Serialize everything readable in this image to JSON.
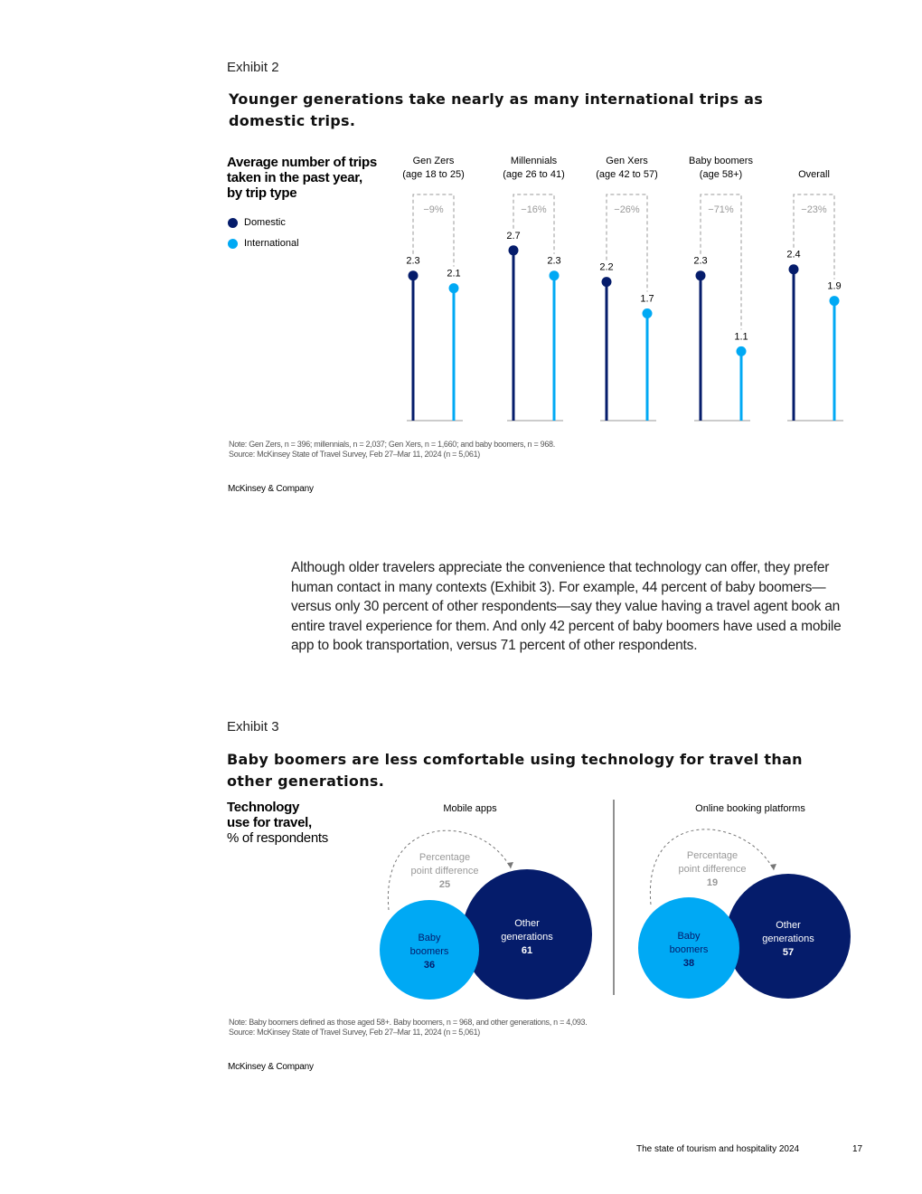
{
  "exhibit2": {
    "label": "Exhibit 2",
    "title": "Younger generations take nearly as many international trips as domestic trips.",
    "subtitle_lines": [
      "Average number of trips",
      "taken in the past year,",
      "by trip type"
    ],
    "legend": {
      "domestic": "Domestic",
      "international": "International"
    },
    "note": "Note: Gen Zers, n = 396; millennials, n = 2,037; Gen Xers, n = 1,660; and baby boomers, n = 968.",
    "source": "Source: McKinsey State of Travel Survey, Feb 27–Mar 11, 2024 (n = 5,061)",
    "brand": "McKinsey & Company"
  },
  "chart_data": [
    {
      "type": "lollipop",
      "title": "Average number of trips taken in the past year, by trip type",
      "categories": [
        {
          "name": "Gen Zers",
          "sub": "(age 18 to 25)"
        },
        {
          "name": "Millennials",
          "sub": "(age 26 to 41)"
        },
        {
          "name": "Gen Xers",
          "sub": "(age 42 to 57)"
        },
        {
          "name": "Baby boomers",
          "sub": "(age 58+)"
        },
        {
          "name": "Overall",
          "sub": ""
        }
      ],
      "series": [
        {
          "name": "Domestic",
          "color": "#051c6b",
          "values": [
            2.3,
            2.7,
            2.2,
            2.3,
            2.4
          ]
        },
        {
          "name": "International",
          "color": "#00a9f4",
          "values": [
            2.1,
            2.3,
            1.7,
            1.1,
            1.9
          ]
        }
      ],
      "differences": [
        "−9%",
        "−16%",
        "−26%",
        "−71%",
        "−23%"
      ],
      "ylim": [
        0,
        3
      ]
    },
    {
      "type": "bubble",
      "title": "Technology use for travel, % of respondents",
      "panels": [
        {
          "title": "Mobile apps",
          "baby_boomers": 36,
          "other_generations": 61,
          "difference": 25
        },
        {
          "title": "Online booking platforms",
          "baby_boomers": 38,
          "other_generations": 57,
          "difference": 19
        }
      ],
      "labels": {
        "baby": [
          "Baby",
          "boomers"
        ],
        "other": [
          "Other",
          "generations"
        ],
        "diff": [
          "Percentage",
          "point difference"
        ]
      }
    }
  ],
  "body_text": "Although older travelers appreciate the convenience that technology can offer, they prefer human contact in many contexts (Exhibit 3). For example, 44 percent of baby boomers—versus only 30 percent of other respondents—say they value having a travel agent book an entire travel experience for them. And only 42 percent of baby boomers have used a mobile app to book transportation, versus 71 percent of other respondents.",
  "exhibit3": {
    "label": "Exhibit 3",
    "title": "Baby boomers are less comfortable using technology for travel than other generations.",
    "subtitle_bold": [
      "Technology",
      "use for travel,"
    ],
    "subtitle_regular": "% of respondents",
    "note": "Note: Baby boomers defined as those aged 58+. Baby boomers, n = 968, and other generations, n = 4,093.",
    "source": "Source: McKinsey State of Travel Survey, Feb 27–Mar 11, 2024 (n = 5,061)",
    "brand": "McKinsey & Company"
  },
  "footer": {
    "title": "The state of tourism and hospitality 2024",
    "page": "17"
  },
  "colors": {
    "navy": "#051c6b",
    "cyan": "#00a9f4",
    "gray": "#999999"
  }
}
